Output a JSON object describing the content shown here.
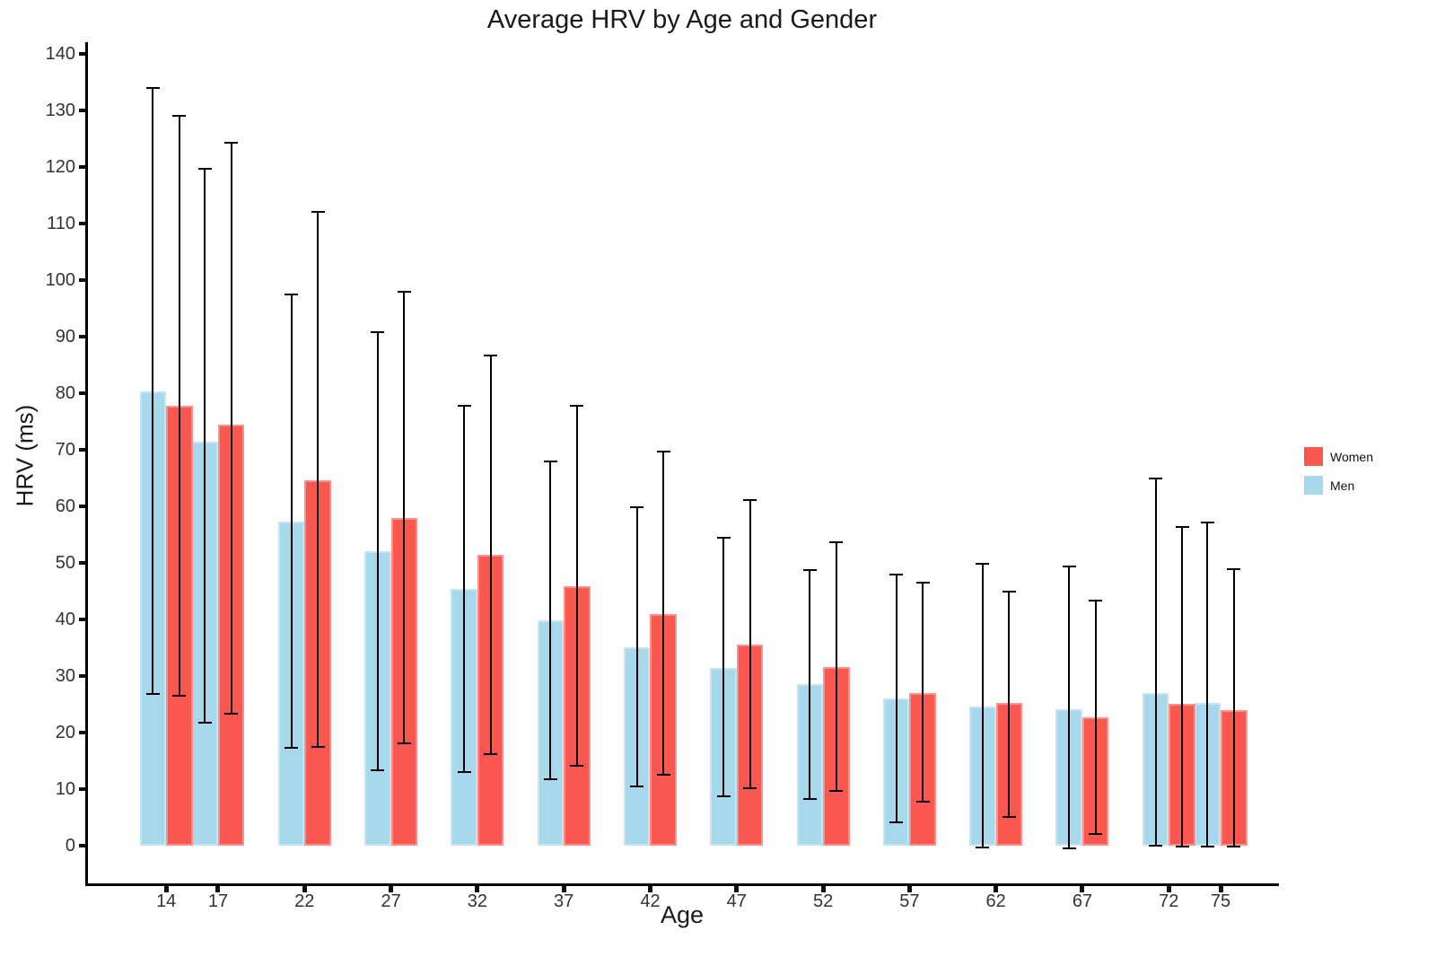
{
  "title": "Average HRV by Age and Gender",
  "axes": {
    "x_label": "Age",
    "y_label": "HRV (ms)",
    "y_ticks": [
      0,
      10,
      20,
      30,
      40,
      50,
      60,
      70,
      80,
      90,
      100,
      110,
      120,
      130,
      140
    ],
    "x_ticks": [
      14,
      17,
      22,
      27,
      32,
      37,
      42,
      47,
      52,
      57,
      62,
      67,
      72,
      75
    ]
  },
  "legend": {
    "items": [
      {
        "label": "Women",
        "color": "#F9574F"
      },
      {
        "label": "Men",
        "color": "#A8D8EC"
      }
    ]
  },
  "chart_data": {
    "type": "bar",
    "title": "Average HRV by Age and Gender",
    "xlabel": "Age",
    "ylabel": "HRV (ms)",
    "categories": [
      14,
      17,
      22,
      27,
      32,
      37,
      42,
      47,
      52,
      57,
      62,
      67,
      72,
      75
    ],
    "series": [
      {
        "name": "Men",
        "color": "#A8D8EC",
        "values": [
          80.3,
          71.5,
          57.3,
          52.1,
          45.4,
          39.8,
          35.1,
          31.5,
          28.5,
          26.0,
          24.6,
          24.1,
          27.0,
          25.3
        ],
        "error_high": [
          134.0,
          119.7,
          97.4,
          90.8,
          77.7,
          67.9,
          59.8,
          54.4,
          48.8,
          48.0,
          49.8,
          49.3,
          65.0,
          57.2
        ],
        "error_low": [
          26.8,
          21.7,
          17.3,
          13.3,
          13.0,
          11.7,
          10.5,
          8.7,
          8.3,
          4.2,
          -0.3,
          -0.4,
          0.0,
          -0.1
        ]
      },
      {
        "name": "Women",
        "color": "#F9574F",
        "values": [
          77.8,
          74.5,
          64.6,
          58.0,
          51.5,
          45.9,
          40.9,
          35.5,
          31.6,
          27.0,
          25.2,
          22.7,
          25.1,
          23.9
        ],
        "error_high": [
          129.0,
          124.3,
          112.0,
          97.9,
          86.7,
          77.8,
          69.7,
          61.1,
          53.7,
          46.5,
          45.0,
          43.3,
          56.4,
          48.9
        ],
        "error_low": [
          26.5,
          23.3,
          17.5,
          18.1,
          16.2,
          14.1,
          12.5,
          10.2,
          9.7,
          7.7,
          5.1,
          2.1,
          -0.1,
          -0.1
        ]
      }
    ],
    "ylim": [
      0,
      140
    ],
    "grid": false,
    "legend_position": "right"
  }
}
